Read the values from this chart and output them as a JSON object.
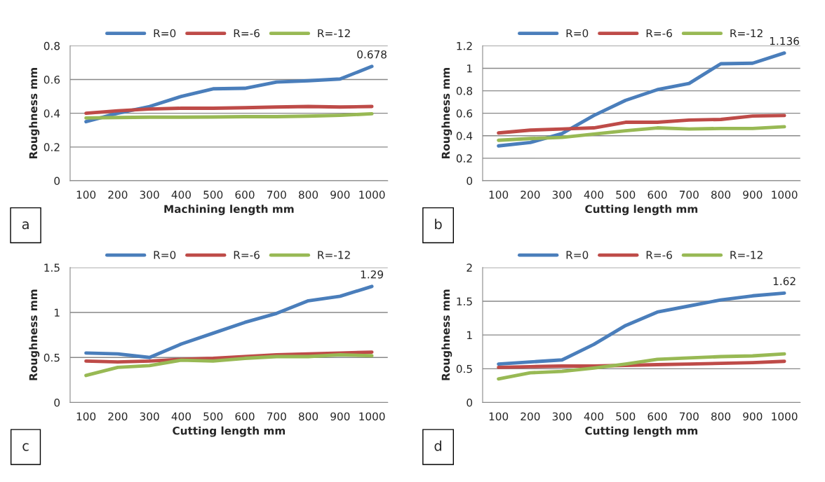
{
  "chart_data": [
    {
      "type": "line",
      "ylabel": "Roughness mm",
      "xlabel": "Machining length mm",
      "categories": [
        "100",
        "200",
        "300",
        "400",
        "500",
        "600",
        "700",
        "800",
        "900",
        "1000"
      ],
      "ylim": [
        0,
        0.8
      ],
      "yticks": [
        0,
        0.2,
        0.4,
        0.6,
        0.8
      ],
      "grid": "y",
      "legend": "top",
      "marker": "none",
      "line_style": "solid",
      "series": [
        {
          "name": "R=0",
          "color": "#4a7ebb",
          "values": [
            0.35,
            0.4,
            0.44,
            0.5,
            0.545,
            0.548,
            0.585,
            0.593,
            0.603,
            0.678
          ]
        },
        {
          "name": "R=-6",
          "color": "#be4b48",
          "values": [
            0.4,
            0.415,
            0.425,
            0.43,
            0.43,
            0.433,
            0.437,
            0.44,
            0.437,
            0.44
          ]
        },
        {
          "name": "R=-12",
          "color": "#98b954",
          "values": [
            0.372,
            0.375,
            0.377,
            0.377,
            0.378,
            0.38,
            0.38,
            0.383,
            0.388,
            0.397
          ]
        }
      ],
      "annotations": [
        {
          "text": "0.678",
          "x": "1000",
          "y": 0.678
        },
        "a"
      ]
    },
    {
      "type": "line",
      "ylabel": "Roughness mm",
      "xlabel": "Cutting length mm",
      "categories": [
        "100",
        "200",
        "300",
        "400",
        "500",
        "600",
        "700",
        "800",
        "900",
        "1000"
      ],
      "ylim": [
        0,
        1.2
      ],
      "yticks": [
        0,
        0.2,
        0.4,
        0.6,
        0.8,
        1,
        1.2
      ],
      "grid": "y",
      "legend": "top",
      "marker": "none",
      "line_style": "solid",
      "series": [
        {
          "name": "R=0",
          "color": "#4a7ebb",
          "values": [
            0.31,
            0.34,
            0.42,
            0.58,
            0.715,
            0.81,
            0.865,
            1.04,
            1.045,
            1.136
          ]
        },
        {
          "name": "R=-6",
          "color": "#be4b48",
          "values": [
            0.425,
            0.45,
            0.46,
            0.47,
            0.52,
            0.52,
            0.54,
            0.545,
            0.575,
            0.58
          ]
        },
        {
          "name": "R=-12",
          "color": "#98b954",
          "values": [
            0.36,
            0.375,
            0.385,
            0.415,
            0.445,
            0.47,
            0.46,
            0.465,
            0.465,
            0.48
          ]
        }
      ],
      "annotations": [
        {
          "text": "1.136",
          "x": "1000",
          "y": 1.136
        },
        "b"
      ]
    },
    {
      "type": "line",
      "ylabel": "Roughness mm",
      "xlabel": "Cutting length mm",
      "categories": [
        "100",
        "200",
        "300",
        "400",
        "500",
        "600",
        "700",
        "800",
        "900",
        "1000"
      ],
      "ylim": [
        0,
        1.5
      ],
      "yticks": [
        0,
        0.5,
        1,
        1.5
      ],
      "grid": "y",
      "legend": "top",
      "marker": "none",
      "line_style": "solid",
      "series": [
        {
          "name": "R=0",
          "color": "#4a7ebb",
          "values": [
            0.55,
            0.54,
            0.5,
            0.65,
            0.77,
            0.89,
            0.99,
            1.13,
            1.18,
            1.29
          ]
        },
        {
          "name": "R=-6",
          "color": "#be4b48",
          "values": [
            0.46,
            0.45,
            0.46,
            0.48,
            0.49,
            0.51,
            0.53,
            0.54,
            0.55,
            0.56
          ]
        },
        {
          "name": "R=-12",
          "color": "#98b954",
          "values": [
            0.3,
            0.39,
            0.41,
            0.47,
            0.46,
            0.49,
            0.51,
            0.51,
            0.53,
            0.52
          ]
        }
      ],
      "annotations": [
        {
          "text": "1.29",
          "x": "1000",
          "y": 1.29
        },
        "c"
      ]
    },
    {
      "type": "line",
      "ylabel": "Roughness mm",
      "xlabel": "Cutting length mm",
      "categories": [
        "100",
        "200",
        "300",
        "400",
        "500",
        "600",
        "700",
        "800",
        "900",
        "1000"
      ],
      "ylim": [
        0,
        2
      ],
      "yticks": [
        0,
        0.5,
        1,
        1.5,
        2
      ],
      "grid": "y",
      "legend": "top",
      "marker": "none",
      "line_style": "solid",
      "series": [
        {
          "name": "R=0",
          "color": "#4a7ebb",
          "values": [
            0.57,
            0.6,
            0.63,
            0.86,
            1.14,
            1.34,
            1.43,
            1.52,
            1.58,
            1.62
          ]
        },
        {
          "name": "R=-6",
          "color": "#be4b48",
          "values": [
            0.52,
            0.53,
            0.54,
            0.54,
            0.55,
            0.56,
            0.57,
            0.58,
            0.59,
            0.61
          ]
        },
        {
          "name": "R=-12",
          "color": "#98b954",
          "values": [
            0.35,
            0.44,
            0.46,
            0.51,
            0.57,
            0.64,
            0.66,
            0.68,
            0.69,
            0.72
          ]
        }
      ],
      "annotations": [
        {
          "text": "1.62",
          "x": "1000",
          "y": 1.62
        },
        "d"
      ]
    }
  ]
}
